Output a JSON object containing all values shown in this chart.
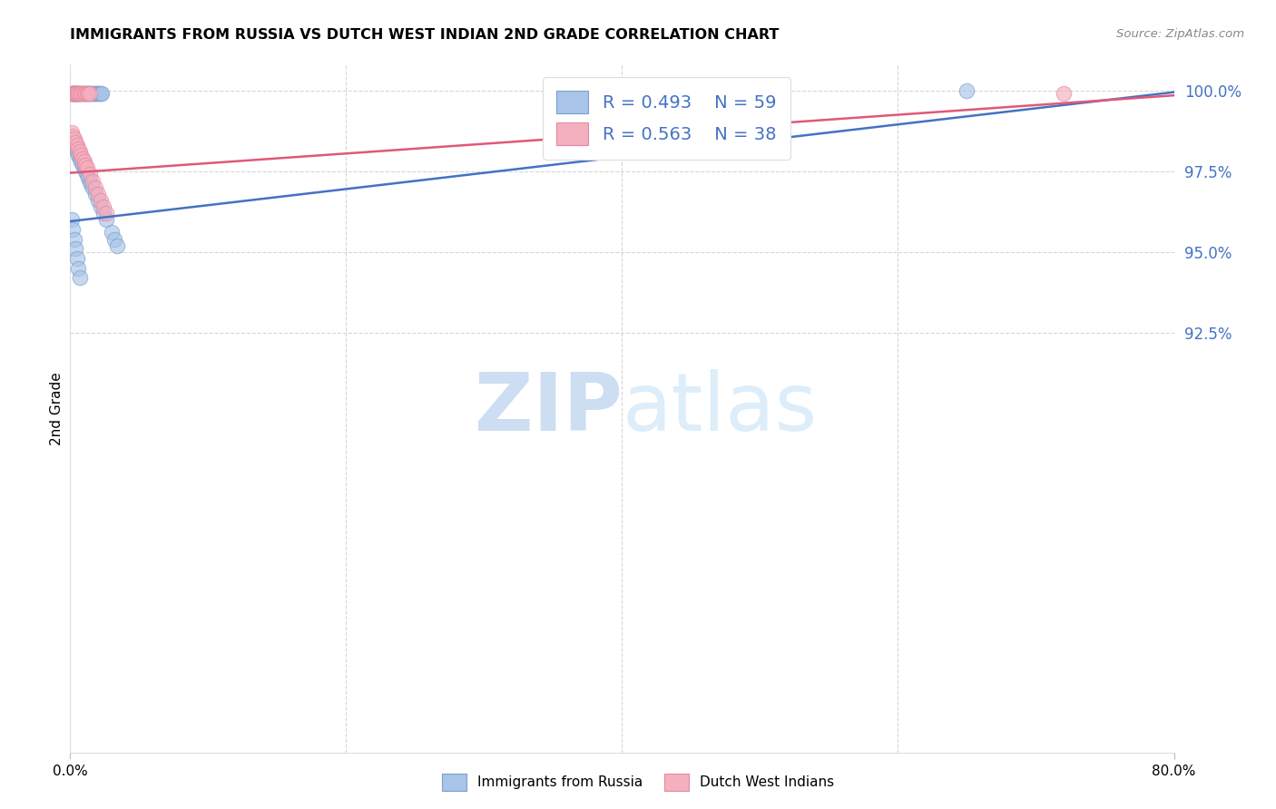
{
  "title": "IMMIGRANTS FROM RUSSIA VS DUTCH WEST INDIAN 2ND GRADE CORRELATION CHART",
  "source": "Source: ZipAtlas.com",
  "ylabel": "2nd Grade",
  "xlim": [
    0.0,
    0.8
  ],
  "ylim": [
    0.795,
    1.008
  ],
  "legend_blue_r": "R = 0.493",
  "legend_blue_n": "N = 59",
  "legend_pink_r": "R = 0.563",
  "legend_pink_n": "N = 38",
  "blue_color": "#a8c4e8",
  "pink_color": "#f4b0be",
  "blue_edge_color": "#7aa0cc",
  "pink_edge_color": "#e888a0",
  "blue_line_color": "#4472c4",
  "pink_line_color": "#e05878",
  "ytick_vals": [
    1.0,
    0.975,
    0.95,
    0.925
  ],
  "ytick_labels": [
    "100.0%",
    "97.5%",
    "95.0%",
    "92.5%"
  ],
  "ytick_color": "#4472c4",
  "grid_color": "#cccccc",
  "blue_x": [
    0.001,
    0.002,
    0.002,
    0.003,
    0.003,
    0.004,
    0.004,
    0.005,
    0.005,
    0.006,
    0.007,
    0.008,
    0.009,
    0.01,
    0.011,
    0.012,
    0.013,
    0.014,
    0.015,
    0.016,
    0.017,
    0.018,
    0.019,
    0.02,
    0.021,
    0.022,
    0.023,
    0.001,
    0.002,
    0.003,
    0.004,
    0.005,
    0.006,
    0.007,
    0.008,
    0.009,
    0.01,
    0.011,
    0.012,
    0.013,
    0.014,
    0.015,
    0.016,
    0.018,
    0.02,
    0.022,
    0.024,
    0.026,
    0.03,
    0.032,
    0.034,
    0.001,
    0.002,
    0.003,
    0.004,
    0.005,
    0.006,
    0.007,
    0.65
  ],
  "blue_y": [
    0.999,
    0.999,
    0.999,
    0.999,
    0.999,
    0.999,
    0.999,
    0.999,
    0.999,
    0.999,
    0.999,
    0.999,
    0.999,
    0.999,
    0.999,
    0.999,
    0.999,
    0.999,
    0.999,
    0.999,
    0.999,
    0.999,
    0.999,
    0.999,
    0.999,
    0.999,
    0.999,
    0.985,
    0.984,
    0.983,
    0.982,
    0.981,
    0.98,
    0.979,
    0.978,
    0.977,
    0.976,
    0.975,
    0.974,
    0.973,
    0.972,
    0.971,
    0.97,
    0.968,
    0.966,
    0.964,
    0.962,
    0.96,
    0.956,
    0.954,
    0.952,
    0.96,
    0.957,
    0.954,
    0.951,
    0.948,
    0.945,
    0.942,
    1.0
  ],
  "pink_x": [
    0.001,
    0.002,
    0.002,
    0.003,
    0.003,
    0.004,
    0.004,
    0.005,
    0.005,
    0.006,
    0.007,
    0.008,
    0.009,
    0.01,
    0.011,
    0.012,
    0.013,
    0.014,
    0.001,
    0.002,
    0.003,
    0.004,
    0.005,
    0.006,
    0.007,
    0.008,
    0.009,
    0.01,
    0.011,
    0.012,
    0.014,
    0.016,
    0.018,
    0.02,
    0.022,
    0.024,
    0.026,
    0.72
  ],
  "pink_y": [
    0.999,
    0.999,
    0.999,
    0.999,
    0.999,
    0.999,
    0.999,
    0.999,
    0.999,
    0.999,
    0.999,
    0.999,
    0.999,
    0.999,
    0.999,
    0.999,
    0.999,
    0.999,
    0.987,
    0.986,
    0.985,
    0.984,
    0.983,
    0.982,
    0.981,
    0.98,
    0.979,
    0.978,
    0.977,
    0.976,
    0.974,
    0.972,
    0.97,
    0.968,
    0.966,
    0.964,
    0.962,
    0.999
  ]
}
